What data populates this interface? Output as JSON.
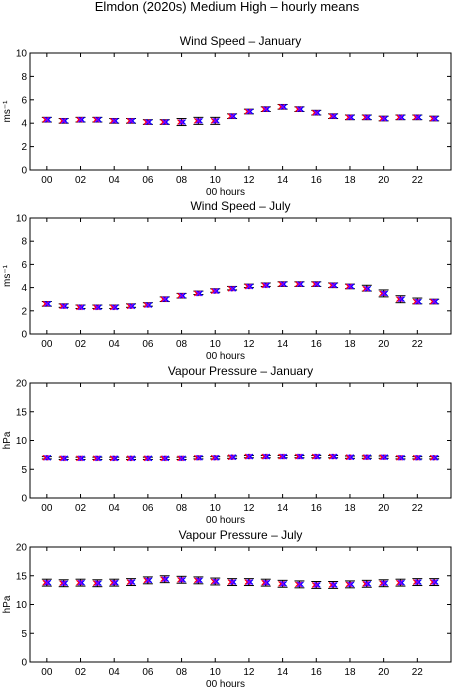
{
  "figure": {
    "title": "Elmdon (2020s) Medium High – hourly means"
  },
  "colors": {
    "whisker": "#000000",
    "mean_a": "#ff0000",
    "mean_b": "#0000ff",
    "mean_c": "#8000ff"
  },
  "chart_data": [
    {
      "type": "errorbar",
      "title": "Wind Speed – January",
      "xlabel": "00 hours",
      "ylabel": "ms⁻¹",
      "ylim": [
        0,
        10
      ],
      "yticks": [
        0,
        2,
        4,
        6,
        8,
        10
      ],
      "xlim": [
        -1,
        24
      ],
      "xticks": [
        "00",
        "02",
        "04",
        "06",
        "08",
        "10",
        "12",
        "14",
        "16",
        "18",
        "20",
        "22"
      ],
      "grid": false,
      "x": [
        0,
        1,
        2,
        3,
        4,
        5,
        6,
        7,
        8,
        9,
        10,
        11,
        12,
        13,
        14,
        15,
        16,
        17,
        18,
        19,
        20,
        21,
        22,
        23
      ],
      "mean": [
        4.3,
        4.2,
        4.3,
        4.3,
        4.2,
        4.2,
        4.1,
        4.1,
        4.1,
        4.2,
        4.2,
        4.6,
        5.0,
        5.2,
        5.4,
        5.2,
        4.9,
        4.6,
        4.5,
        4.5,
        4.4,
        4.5,
        4.5,
        4.4
      ],
      "lower": [
        4.1,
        4.0,
        4.1,
        4.1,
        4.0,
        4.0,
        3.9,
        3.9,
        3.8,
        3.9,
        3.9,
        4.4,
        4.8,
        5.0,
        5.2,
        5.0,
        4.7,
        4.4,
        4.3,
        4.3,
        4.2,
        4.3,
        4.3,
        4.2
      ],
      "upper": [
        4.5,
        4.4,
        4.5,
        4.5,
        4.4,
        4.4,
        4.3,
        4.3,
        4.4,
        4.5,
        4.5,
        4.8,
        5.2,
        5.4,
        5.6,
        5.4,
        5.1,
        4.8,
        4.7,
        4.7,
        4.6,
        4.7,
        4.7,
        4.6
      ]
    },
    {
      "type": "errorbar",
      "title": "Wind Speed – July",
      "xlabel": "00 hours",
      "ylabel": "ms⁻¹",
      "ylim": [
        0,
        10
      ],
      "yticks": [
        0,
        2,
        4,
        6,
        8,
        10
      ],
      "xlim": [
        -1,
        24
      ],
      "xticks": [
        "00",
        "02",
        "04",
        "06",
        "08",
        "10",
        "12",
        "14",
        "16",
        "18",
        "20",
        "22"
      ],
      "grid": false,
      "x": [
        0,
        1,
        2,
        3,
        4,
        5,
        6,
        7,
        8,
        9,
        10,
        11,
        12,
        13,
        14,
        15,
        16,
        17,
        18,
        19,
        20,
        21,
        22,
        23
      ],
      "mean": [
        2.6,
        2.4,
        2.3,
        2.3,
        2.3,
        2.4,
        2.5,
        3.0,
        3.3,
        3.5,
        3.7,
        3.9,
        4.1,
        4.2,
        4.3,
        4.3,
        4.3,
        4.2,
        4.1,
        3.9,
        3.5,
        3.0,
        2.8,
        2.8
      ],
      "lower": [
        2.4,
        2.3,
        2.2,
        2.2,
        2.2,
        2.3,
        2.4,
        2.8,
        3.1,
        3.4,
        3.6,
        3.8,
        4.0,
        4.1,
        4.1,
        4.1,
        4.1,
        4.0,
        3.9,
        3.7,
        3.2,
        2.7,
        2.6,
        2.6
      ],
      "upper": [
        2.8,
        2.6,
        2.5,
        2.5,
        2.5,
        2.6,
        2.7,
        3.2,
        3.5,
        3.7,
        3.9,
        4.1,
        4.3,
        4.4,
        4.5,
        4.5,
        4.5,
        4.4,
        4.3,
        4.2,
        3.8,
        3.3,
        3.1,
        3.0
      ]
    },
    {
      "type": "errorbar",
      "title": "Vapour Pressure – January",
      "xlabel": "00 hours",
      "ylabel": "hPa",
      "ylim": [
        0,
        20
      ],
      "yticks": [
        0,
        5,
        10,
        15,
        20
      ],
      "xlim": [
        -1,
        24
      ],
      "xticks": [
        "00",
        "02",
        "04",
        "06",
        "08",
        "10",
        "12",
        "14",
        "16",
        "18",
        "20",
        "22"
      ],
      "grid": false,
      "x": [
        0,
        1,
        2,
        3,
        4,
        5,
        6,
        7,
        8,
        9,
        10,
        11,
        12,
        13,
        14,
        15,
        16,
        17,
        18,
        19,
        20,
        21,
        22,
        23
      ],
      "mean": [
        7.0,
        6.9,
        6.9,
        6.9,
        6.9,
        6.9,
        6.9,
        6.9,
        6.9,
        7.0,
        7.0,
        7.1,
        7.2,
        7.2,
        7.2,
        7.2,
        7.2,
        7.2,
        7.1,
        7.1,
        7.1,
        7.0,
        7.0,
        7.0
      ],
      "lower": [
        6.8,
        6.7,
        6.7,
        6.7,
        6.7,
        6.7,
        6.7,
        6.7,
        6.7,
        6.8,
        6.8,
        6.9,
        7.0,
        7.0,
        7.0,
        7.0,
        7.0,
        7.0,
        6.9,
        6.9,
        6.9,
        6.8,
        6.8,
        6.8
      ],
      "upper": [
        7.2,
        7.1,
        7.1,
        7.1,
        7.1,
        7.1,
        7.1,
        7.1,
        7.1,
        7.2,
        7.2,
        7.3,
        7.4,
        7.4,
        7.4,
        7.4,
        7.4,
        7.4,
        7.3,
        7.3,
        7.3,
        7.2,
        7.2,
        7.2
      ]
    },
    {
      "type": "errorbar",
      "title": "Vapour Pressure – July",
      "xlabel": "00 hours",
      "ylabel": "hPa",
      "ylim": [
        0,
        20
      ],
      "yticks": [
        0,
        5,
        10,
        15,
        20
      ],
      "xlim": [
        -1,
        24
      ],
      "xticks": [
        "00",
        "02",
        "04",
        "06",
        "08",
        "10",
        "12",
        "14",
        "16",
        "18",
        "20",
        "22"
      ],
      "grid": false,
      "x": [
        0,
        1,
        2,
        3,
        4,
        5,
        6,
        7,
        8,
        9,
        10,
        11,
        12,
        13,
        14,
        15,
        16,
        17,
        18,
        19,
        20,
        21,
        22,
        23
      ],
      "mean": [
        13.8,
        13.7,
        13.8,
        13.7,
        13.8,
        13.9,
        14.2,
        14.4,
        14.3,
        14.2,
        14.0,
        13.9,
        13.9,
        13.8,
        13.6,
        13.5,
        13.4,
        13.4,
        13.5,
        13.6,
        13.7,
        13.8,
        13.9,
        13.9
      ],
      "lower": [
        13.2,
        13.1,
        13.2,
        13.1,
        13.2,
        13.3,
        13.6,
        13.8,
        13.7,
        13.6,
        13.4,
        13.3,
        13.3,
        13.2,
        13.0,
        12.9,
        12.8,
        12.8,
        12.9,
        13.0,
        13.1,
        13.2,
        13.3,
        13.3
      ],
      "upper": [
        14.4,
        14.3,
        14.4,
        14.3,
        14.4,
        14.5,
        14.8,
        15.0,
        14.9,
        14.8,
        14.6,
        14.5,
        14.5,
        14.4,
        14.2,
        14.1,
        14.0,
        14.0,
        14.1,
        14.2,
        14.3,
        14.4,
        14.5,
        14.5
      ]
    }
  ]
}
